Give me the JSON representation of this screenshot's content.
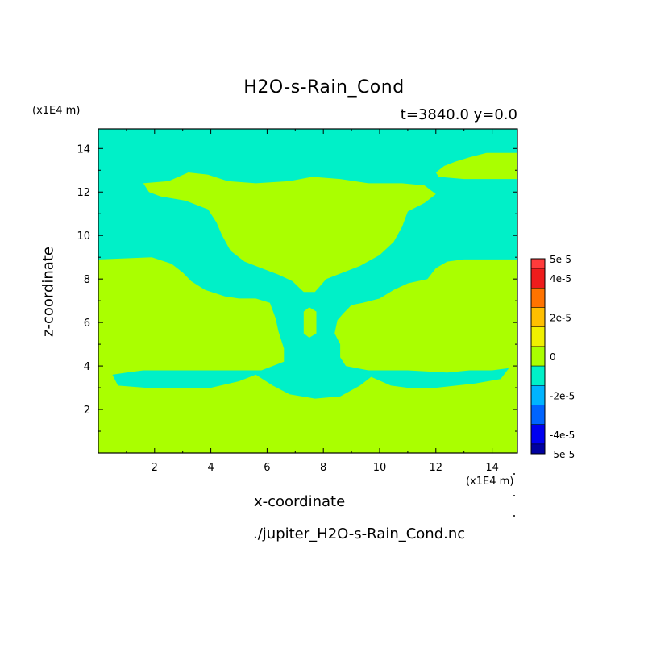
{
  "chart_data": {
    "type": "heatmap",
    "title": "H2O-s-Rain_Cond",
    "subtitle": "t=3840.0 y=0.0",
    "xlabel": "x-coordinate",
    "ylabel": "z-coordinate",
    "x_unit": "(x1E4 m)",
    "y_unit": "(x1E4 m)",
    "source_file": "./jupiter_H2O-s-Rain_Cond.nc",
    "xlim": [
      0,
      14.9
    ],
    "ylim": [
      0,
      14.9
    ],
    "xticks": [
      2,
      4,
      6,
      8,
      10,
      12,
      14
    ],
    "yticks": [
      2,
      4,
      6,
      8,
      10,
      12,
      14
    ],
    "colorbar": {
      "range": [
        -5e-05,
        5e-05
      ],
      "tick_labels": [
        "5e-5",
        "4e-5",
        "2e-5",
        "0",
        "-2e-5",
        "-4e-5",
        "-5e-5"
      ],
      "tick_values": [
        5e-05,
        4e-05,
        2e-05,
        0,
        -2e-05,
        -4e-05,
        -5e-05
      ],
      "levels": [
        {
          "from": 4.5e-05,
          "to": 5e-05,
          "color": "#ff3b3b"
        },
        {
          "from": 3.5e-05,
          "to": 4.5e-05,
          "color": "#ee1c1c"
        },
        {
          "from": 2.5e-05,
          "to": 3.5e-05,
          "color": "#ff7300"
        },
        {
          "from": 1.5e-05,
          "to": 2.5e-05,
          "color": "#ffbf00"
        },
        {
          "from": 5e-06,
          "to": 1.5e-05,
          "color": "#f0f000"
        },
        {
          "from": -5e-06,
          "to": 5e-06,
          "color": "#aaff00"
        },
        {
          "from": -1.5e-05,
          "to": -5e-06,
          "color": "#00f0c8"
        },
        {
          "from": -2.5e-05,
          "to": -1.5e-05,
          "color": "#00b4ff"
        },
        {
          "from": -3.5e-05,
          "to": -2.5e-05,
          "color": "#0064ff"
        },
        {
          "from": -4.5e-05,
          "to": -3.5e-05,
          "color": "#0000f0"
        },
        {
          "from": -5e-05,
          "to": -4.5e-05,
          "color": "#0000a0"
        }
      ]
    },
    "field": {
      "background_value": 0,
      "background_color": "#aaff00",
      "negative_region_value": -1e-05,
      "negative_region_color": "#00f0c8",
      "negative_regions": [
        {
          "name": "upper-left-cyan-region",
          "points": [
            [
              0,
              14.9
            ],
            [
              14.9,
              14.9
            ],
            [
              14.9,
              13.8
            ],
            [
              14.6,
              13.8
            ],
            [
              14.4,
              13.8
            ],
            [
              13.8,
              13.8
            ],
            [
              13.2,
              13.6
            ],
            [
              12.7,
              13.4
            ],
            [
              12.3,
              13.2
            ],
            [
              12,
              12.9
            ],
            [
              12.1,
              12.7
            ],
            [
              13,
              12.6
            ],
            [
              14.9,
              12.6
            ],
            [
              14.9,
              8.9
            ],
            [
              13,
              8.9
            ],
            [
              12.4,
              8.8
            ],
            [
              12,
              8.5
            ],
            [
              11.7,
              8
            ],
            [
              11,
              7.8
            ],
            [
              10.5,
              7.5
            ],
            [
              10,
              7.1
            ],
            [
              9.4,
              6.9
            ],
            [
              9,
              6.8
            ],
            [
              8.7,
              6.4
            ],
            [
              8.5,
              6.1
            ],
            [
              8.4,
              5.5
            ],
            [
              8.6,
              5
            ],
            [
              8.6,
              4.4
            ],
            [
              8.8,
              4
            ],
            [
              9.6,
              3.8
            ],
            [
              11,
              3.8
            ],
            [
              12.4,
              3.7
            ],
            [
              13.2,
              3.8
            ],
            [
              14,
              3.8
            ],
            [
              14.6,
              3.9
            ],
            [
              14.3,
              3.4
            ],
            [
              13.4,
              3.2
            ],
            [
              12,
              3
            ],
            [
              11,
              3
            ],
            [
              10.4,
              3.1
            ],
            [
              9.7,
              3.5
            ],
            [
              9.3,
              3.1
            ],
            [
              8.6,
              2.6
            ],
            [
              7.7,
              2.5
            ],
            [
              6.8,
              2.7
            ],
            [
              6.2,
              3.1
            ],
            [
              5.6,
              3.6
            ],
            [
              5,
              3.3
            ],
            [
              4,
              3
            ],
            [
              2.8,
              3
            ],
            [
              1.7,
              3
            ],
            [
              0.7,
              3.1
            ],
            [
              0.5,
              3.6
            ],
            [
              1,
              3.7
            ],
            [
              1.6,
              3.8
            ],
            [
              3.4,
              3.8
            ],
            [
              5.8,
              3.8
            ],
            [
              6.6,
              4.2
            ],
            [
              6.6,
              4.8
            ],
            [
              6.4,
              5.6
            ],
            [
              6.3,
              6.2
            ],
            [
              6.1,
              6.9
            ],
            [
              5.6,
              7.1
            ],
            [
              5,
              7.1
            ],
            [
              4.5,
              7.2
            ],
            [
              3.8,
              7.5
            ],
            [
              3.3,
              7.9
            ],
            [
              3,
              8.3
            ],
            [
              2.6,
              8.7
            ],
            [
              1.9,
              9
            ],
            [
              0,
              8.9
            ]
          ]
        },
        {
          "name": "upper-inner-cyan-arch",
          "points": [
            [
              0,
              12.6
            ],
            [
              1.6,
              12.6
            ],
            [
              2.4,
              12.8
            ],
            [
              2.9,
              13.1
            ],
            [
              3.1,
              13.3
            ],
            [
              3.8,
              13.2
            ],
            [
              4.3,
              12.8
            ],
            [
              5.3,
              12.6
            ],
            [
              6.5,
              12.7
            ],
            [
              7.4,
              12.9
            ],
            [
              8.1,
              12.9
            ],
            [
              9.1,
              12.8
            ],
            [
              10,
              12.6
            ],
            [
              11.2,
              12.6
            ],
            [
              11.9,
              12.7
            ],
            [
              12.3,
              12.3
            ],
            [
              12.3,
              11.6
            ],
            [
              11.8,
              11.3
            ],
            [
              11.3,
              11
            ],
            [
              11.2,
              10.5
            ],
            [
              11,
              9.8
            ],
            [
              10.6,
              9.1
            ],
            [
              10.1,
              8.6
            ],
            [
              9.4,
              8.1
            ],
            [
              8.8,
              7.9
            ],
            [
              8.2,
              7.6
            ],
            [
              7.8,
              7.1
            ],
            [
              7.2,
              7.1
            ],
            [
              6.8,
              7.6
            ],
            [
              6.3,
              7.9
            ],
            [
              5.7,
              8.1
            ],
            [
              5.1,
              8.4
            ],
            [
              4.6,
              8.9
            ],
            [
              4.2,
              9.6
            ],
            [
              3.9,
              10.4
            ],
            [
              3.6,
              11
            ],
            [
              2.8,
              11.4
            ],
            [
              1.7,
              11.5
            ],
            [
              1.3,
              12
            ],
            [
              0.8,
              12.4
            ],
            [
              0,
              12.4
            ]
          ]
        }
      ],
      "positive_islands": [
        {
          "name": "central-column-hole",
          "points": [
            [
              7.3,
              5.5
            ],
            [
              7.5,
              5.3
            ],
            [
              7.75,
              5.5
            ],
            [
              7.75,
              6.5
            ],
            [
              7.5,
              6.7
            ],
            [
              7.3,
              6.5
            ]
          ]
        },
        {
          "name": "upper-arch-interior",
          "points": [
            [
              1.6,
              12.4
            ],
            [
              2.5,
              12.5
            ],
            [
              3.2,
              12.9
            ],
            [
              3.9,
              12.8
            ],
            [
              4.6,
              12.5
            ],
            [
              5.6,
              12.4
            ],
            [
              6.8,
              12.5
            ],
            [
              7.6,
              12.7
            ],
            [
              8.6,
              12.6
            ],
            [
              9.6,
              12.4
            ],
            [
              10.8,
              12.4
            ],
            [
              11.6,
              12.3
            ],
            [
              12,
              11.9
            ],
            [
              11.6,
              11.5
            ],
            [
              11,
              11.1
            ],
            [
              10.8,
              10.4
            ],
            [
              10.5,
              9.7
            ],
            [
              10,
              9.1
            ],
            [
              9.3,
              8.6
            ],
            [
              8.7,
              8.3
            ],
            [
              8.1,
              8
            ],
            [
              7.7,
              7.4
            ],
            [
              7.3,
              7.4
            ],
            [
              6.9,
              7.9
            ],
            [
              6.4,
              8.2
            ],
            [
              5.8,
              8.5
            ],
            [
              5.2,
              8.8
            ],
            [
              4.7,
              9.3
            ],
            [
              4.4,
              10
            ],
            [
              4.2,
              10.6
            ],
            [
              3.9,
              11.2
            ],
            [
              3.1,
              11.6
            ],
            [
              2.2,
              11.8
            ],
            [
              1.8,
              12
            ]
          ]
        }
      ]
    }
  }
}
